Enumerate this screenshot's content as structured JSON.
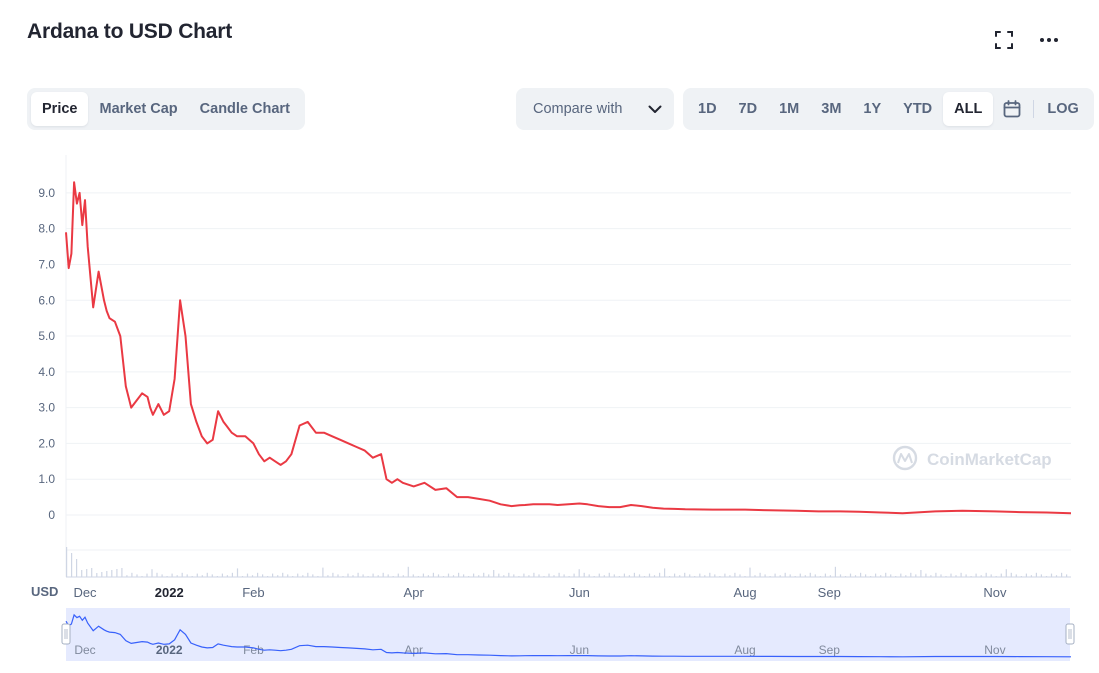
{
  "header": {
    "title": "Ardana to USD Chart"
  },
  "tabs": [
    {
      "label": "Price",
      "active": true
    },
    {
      "label": "Market Cap",
      "active": false
    },
    {
      "label": "Candle Chart",
      "active": false
    }
  ],
  "compare": {
    "label": "Compare with"
  },
  "ranges": [
    {
      "label": "1D",
      "active": false
    },
    {
      "label": "7D",
      "active": false
    },
    {
      "label": "1M",
      "active": false
    },
    {
      "label": "3M",
      "active": false
    },
    {
      "label": "1Y",
      "active": false
    },
    {
      "label": "YTD",
      "active": false
    },
    {
      "label": "ALL",
      "active": true
    }
  ],
  "log_label": "LOG",
  "icons": {
    "fullscreen": "fullscreen-icon",
    "more": "more-icon",
    "calendar": "calendar-icon",
    "chevron": "chevron-down-icon",
    "logo": "coinmarketcap-logo-icon"
  },
  "colors": {
    "price_line": "#ea3943",
    "navigator_line": "#3861fb",
    "navigator_fill": "#e5eafe"
  },
  "watermark": "CoinMarketCap",
  "chart_data": {
    "type": "line",
    "title": "",
    "ylabel": "USD",
    "y_ticks": [
      "0",
      "1.0",
      "2.0",
      "3.0",
      "4.0",
      "5.0",
      "6.0",
      "7.0",
      "8.0",
      "9.0"
    ],
    "ylim": [
      0,
      9.5
    ],
    "x_ticks": [
      "Dec",
      "2022",
      "Feb",
      "Apr",
      "Jun",
      "Aug",
      "Sep",
      "Nov"
    ],
    "x_tick_dates": [
      "2021-12-01",
      "2022-01-01",
      "2022-02-01",
      "2022-04-01",
      "2022-06-01",
      "2022-08-01",
      "2022-09-01",
      "2022-11-01"
    ],
    "xlim": [
      "2021-11-24",
      "2022-11-29"
    ],
    "grid": true,
    "series": [
      {
        "name": "",
        "x": [
          "2021-11-24",
          "2021-11-25",
          "2021-11-26",
          "2021-11-27",
          "2021-11-28",
          "2021-11-29",
          "2021-11-30",
          "2021-12-01",
          "2021-12-02",
          "2021-12-04",
          "2021-12-06",
          "2021-12-08",
          "2021-12-09",
          "2021-12-10",
          "2021-12-12",
          "2021-12-14",
          "2021-12-16",
          "2021-12-18",
          "2021-12-20",
          "2021-12-22",
          "2021-12-24",
          "2021-12-25",
          "2021-12-26",
          "2021-12-28",
          "2021-12-30",
          "2022-01-01",
          "2022-01-03",
          "2022-01-05",
          "2022-01-07",
          "2022-01-09",
          "2022-01-11",
          "2022-01-13",
          "2022-01-15",
          "2022-01-17",
          "2022-01-19",
          "2022-01-21",
          "2022-01-22",
          "2022-01-24",
          "2022-01-26",
          "2022-01-29",
          "2022-02-01",
          "2022-02-03",
          "2022-02-05",
          "2022-02-07",
          "2022-02-09",
          "2022-02-11",
          "2022-02-13",
          "2022-02-15",
          "2022-02-18",
          "2022-02-21",
          "2022-02-24",
          "2022-02-27",
          "2022-03-02",
          "2022-03-05",
          "2022-03-08",
          "2022-03-11",
          "2022-03-14",
          "2022-03-17",
          "2022-03-20",
          "2022-03-22",
          "2022-03-24",
          "2022-03-26",
          "2022-03-28",
          "2022-04-01",
          "2022-04-05",
          "2022-04-09",
          "2022-04-13",
          "2022-04-17",
          "2022-04-21",
          "2022-04-25",
          "2022-04-29",
          "2022-05-03",
          "2022-05-07",
          "2022-05-10",
          "2022-05-12",
          "2022-05-15",
          "2022-05-18",
          "2022-05-21",
          "2022-05-24",
          "2022-05-28",
          "2022-06-01",
          "2022-06-04",
          "2022-06-08",
          "2022-06-12",
          "2022-06-16",
          "2022-06-20",
          "2022-06-24",
          "2022-06-28",
          "2022-07-02",
          "2022-07-06",
          "2022-07-10",
          "2022-07-20",
          "2022-08-01",
          "2022-08-10",
          "2022-08-20",
          "2022-08-28",
          "2022-09-05",
          "2022-09-12",
          "2022-09-20",
          "2022-09-28",
          "2022-10-10",
          "2022-10-20",
          "2022-11-01",
          "2022-11-10",
          "2022-11-20",
          "2022-11-29"
        ],
        "y": [
          7.9,
          6.9,
          7.3,
          9.3,
          8.7,
          9.0,
          8.1,
          8.8,
          7.5,
          5.8,
          6.8,
          6.0,
          5.7,
          5.5,
          5.4,
          5.0,
          3.6,
          3.0,
          3.2,
          3.4,
          3.3,
          3.0,
          2.8,
          3.1,
          2.8,
          2.9,
          3.8,
          6.0,
          5.0,
          3.1,
          2.6,
          2.2,
          2.0,
          2.1,
          2.9,
          2.6,
          2.5,
          2.3,
          2.2,
          2.2,
          2.0,
          1.7,
          1.5,
          1.6,
          1.5,
          1.4,
          1.5,
          1.7,
          2.5,
          2.6,
          2.3,
          2.3,
          2.2,
          2.1,
          2.0,
          1.9,
          1.8,
          1.6,
          1.7,
          1.0,
          0.9,
          1.0,
          0.9,
          0.8,
          0.9,
          0.7,
          0.75,
          0.5,
          0.5,
          0.45,
          0.4,
          0.3,
          0.25,
          0.27,
          0.28,
          0.3,
          0.3,
          0.3,
          0.28,
          0.3,
          0.32,
          0.3,
          0.25,
          0.22,
          0.22,
          0.28,
          0.25,
          0.2,
          0.18,
          0.17,
          0.16,
          0.15,
          0.15,
          0.13,
          0.12,
          0.1,
          0.1,
          0.09,
          0.07,
          0.05,
          0.1,
          0.12,
          0.1,
          0.08,
          0.07,
          0.05
        ]
      }
    ]
  }
}
